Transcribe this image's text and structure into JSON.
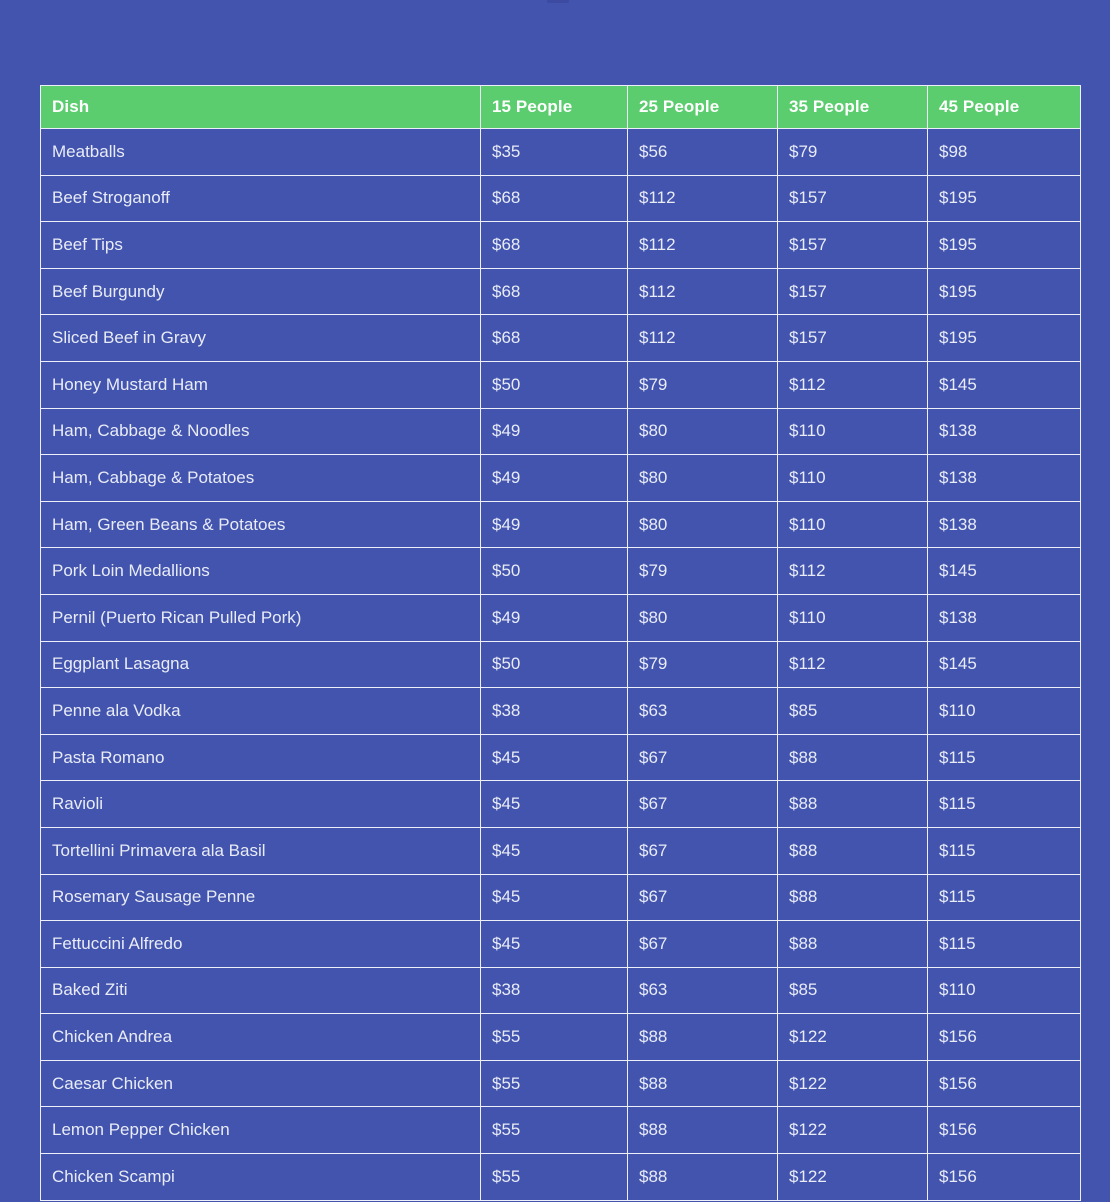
{
  "page": {
    "background_color": "#4254ae",
    "accent_green": "#5ccd6f",
    "grid_line_color": "#eef0f9"
  },
  "pricing_table": {
    "header": {
      "background_color": "#5ccd6f",
      "columns": [
        "Dish",
        "15 People",
        "25 People",
        "35 People",
        "45 People"
      ]
    },
    "rows": [
      [
        "Meatballs",
        "$35",
        "$56",
        "$79",
        "$98"
      ],
      [
        "Beef Stroganoff",
        "$68",
        "$112",
        "$157",
        "$195"
      ],
      [
        "Beef Tips",
        "$68",
        "$112",
        "$157",
        "$195"
      ],
      [
        "Beef Burgundy",
        "$68",
        "$112",
        "$157",
        "$195"
      ],
      [
        "Sliced Beef in Gravy",
        "$68",
        "$112",
        "$157",
        "$195"
      ],
      [
        "Honey Mustard Ham",
        "$50",
        "$79",
        "$112",
        "$145"
      ],
      [
        "Ham, Cabbage & Noodles",
        "$49",
        "$80",
        "$110",
        "$138"
      ],
      [
        "Ham, Cabbage & Potatoes",
        "$49",
        "$80",
        "$110",
        "$138"
      ],
      [
        "Ham, Green Beans & Potatoes",
        "$49",
        "$80",
        "$110",
        "$138"
      ],
      [
        "Pork Loin Medallions",
        "$50",
        "$79",
        "$112",
        "$145"
      ],
      [
        "Pernil (Puerto Rican Pulled Pork)",
        "$49",
        "$80",
        "$110",
        "$138"
      ],
      [
        "Eggplant Lasagna",
        "$50",
        "$79",
        "$112",
        "$145"
      ],
      [
        "Penne ala Vodka",
        "$38",
        "$63",
        "$85",
        "$110"
      ],
      [
        "Pasta Romano",
        "$45",
        "$67",
        "$88",
        "$115"
      ],
      [
        "Ravioli",
        "$45",
        "$67",
        "$88",
        "$115"
      ],
      [
        "Tortellini Primavera ala Basil",
        "$45",
        "$67",
        "$88",
        "$115"
      ],
      [
        "Rosemary Sausage Penne",
        "$45",
        "$67",
        "$88",
        "$115"
      ],
      [
        "Fettuccini Alfredo",
        "$45",
        "$67",
        "$88",
        "$115"
      ],
      [
        "Baked Ziti",
        "$38",
        "$63",
        "$85",
        "$110"
      ],
      [
        "Chicken Andrea",
        "$55",
        "$88",
        "$122",
        "$156"
      ],
      [
        "Caesar Chicken",
        "$55",
        "$88",
        "$122",
        "$156"
      ],
      [
        "Lemon Pepper Chicken",
        "$55",
        "$88",
        "$122",
        "$156"
      ],
      [
        "Chicken Scampi",
        "$55",
        "$88",
        "$122",
        "$156"
      ]
    ]
  }
}
